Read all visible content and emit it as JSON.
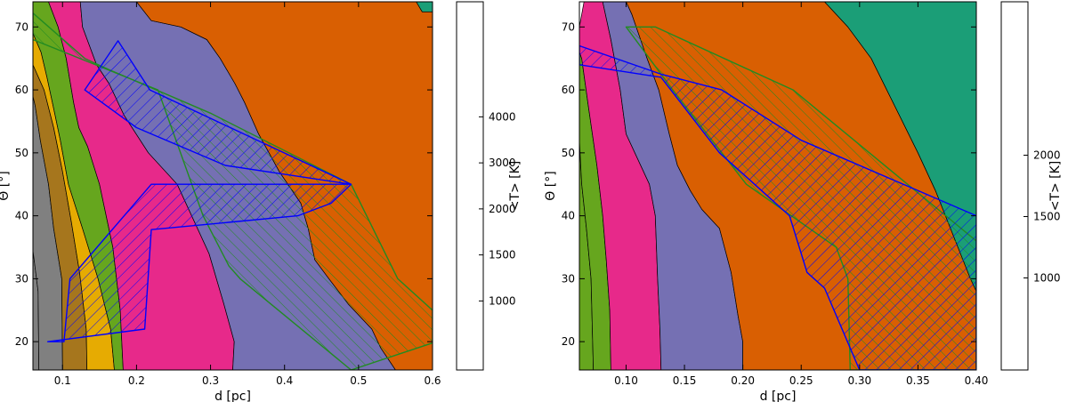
{
  "chart_data": [
    {
      "type": "contour",
      "xlabel": "d [pc]",
      "ylabel": "Θ [°]",
      "xlim": [
        0.06,
        0.6
      ],
      "ylim": [
        15.5,
        74
      ],
      "xticks": [
        0.1,
        0.2,
        0.3,
        0.4,
        0.5,
        0.6
      ],
      "xtick_labels": [
        "0.1",
        "0.2",
        "0.3",
        "0.4",
        "0.5",
        "0.6"
      ],
      "yticks": [
        20,
        30,
        40,
        50,
        60,
        70
      ],
      "ytick_labels": [
        "20",
        "30",
        "40",
        "50",
        "60",
        "70"
      ],
      "colorbar": {
        "label": "<T> [K]",
        "tick_values": [
          1000,
          1500,
          2000,
          3000,
          4000
        ],
        "tick_labels": [
          "1000",
          "1500",
          "2000",
          "3000",
          "4000"
        ],
        "band_colors": [
          "#1b9e77",
          "#d95f02",
          "#7570b3",
          "#e7298a",
          "#66a61e",
          "#e6ab02",
          "#a6761d",
          "#808080"
        ]
      },
      "regions": [
        {
          "color": "#808080",
          "x": [
            0.06,
            0.06,
            0.067,
            0.068,
            0.06
          ],
          "y": [
            74,
            34.5,
            28,
            15.5,
            15.5
          ]
        },
        {
          "color": "#808080",
          "x": [
            0.068,
            0.067,
            0.06,
            0.06,
            0.063,
            0.07,
            0.081,
            0.088,
            0.099,
            0.1
          ],
          "y": [
            15.5,
            28,
            34.5,
            59,
            57.5,
            52,
            45,
            38,
            30,
            15.5
          ]
        },
        {
          "color": "#a6761d",
          "x": [
            0.1,
            0.099,
            0.088,
            0.081,
            0.07,
            0.063,
            0.06,
            0.06,
            0.075,
            0.088,
            0.1,
            0.112,
            0.123,
            0.132,
            0.133
          ],
          "y": [
            15.5,
            30,
            38,
            45,
            52,
            57.5,
            59,
            64,
            60,
            54,
            47,
            39,
            31,
            22,
            15.5
          ]
        },
        {
          "color": "#e6ab02",
          "x": [
            0.133,
            0.132,
            0.123,
            0.112,
            0.1,
            0.088,
            0.075,
            0.06,
            0.06,
            0.071,
            0.079,
            0.09,
            0.097,
            0.108,
            0.127,
            0.148,
            0.165,
            0.17
          ],
          "y": [
            15.5,
            22,
            31,
            39,
            47,
            54,
            60,
            64,
            69,
            66,
            62,
            56,
            52,
            45,
            38,
            30,
            22,
            15.5
          ]
        },
        {
          "color": "#66a61e",
          "x": [
            0.17,
            0.165,
            0.148,
            0.127,
            0.108,
            0.097,
            0.09,
            0.079,
            0.071,
            0.06,
            0.06,
            0.081,
            0.094,
            0.105,
            0.115,
            0.122,
            0.134,
            0.15,
            0.168,
            0.178,
            0.182
          ],
          "y": [
            15.5,
            22,
            30,
            38,
            45,
            52,
            56,
            62,
            66,
            69,
            74,
            74,
            70,
            65,
            58,
            54,
            51,
            45,
            35,
            25,
            15.5
          ]
        },
        {
          "color": "#e7298a",
          "x": [
            0.182,
            0.178,
            0.168,
            0.15,
            0.134,
            0.122,
            0.115,
            0.105,
            0.094,
            0.081,
            0.124,
            0.127,
            0.146,
            0.163,
            0.183,
            0.216,
            0.255,
            0.298,
            0.318,
            0.332,
            0.33
          ],
          "y": [
            15.5,
            25,
            35,
            45,
            51,
            54,
            58,
            65,
            70,
            74,
            74,
            70,
            64,
            61,
            56,
            50,
            45,
            34,
            26,
            20,
            15.5
          ]
        },
        {
          "color": "#7570b3",
          "x": [
            0.33,
            0.332,
            0.318,
            0.298,
            0.255,
            0.216,
            0.183,
            0.163,
            0.146,
            0.127,
            0.124,
            0.2,
            0.22,
            0.26,
            0.295,
            0.313,
            0.333,
            0.346,
            0.365,
            0.393,
            0.422,
            0.432,
            0.441,
            0.46,
            0.486,
            0.518,
            0.53,
            0.55
          ],
          "y": [
            15.5,
            20,
            26,
            34,
            45,
            50,
            56,
            61,
            64,
            70,
            74,
            74,
            71,
            70,
            68,
            65,
            61,
            58,
            53,
            47,
            42,
            38,
            33,
            30,
            26,
            22,
            19,
            15.5
          ]
        },
        {
          "color": "#d95f02",
          "x": [
            0.55,
            0.53,
            0.518,
            0.486,
            0.46,
            0.441,
            0.432,
            0.422,
            0.393,
            0.365,
            0.346,
            0.333,
            0.313,
            0.295,
            0.26,
            0.22,
            0.2,
            0.578,
            0.586,
            0.6,
            0.6
          ],
          "y": [
            15.5,
            19,
            22,
            26,
            30,
            33,
            38,
            42,
            47,
            53,
            58,
            61,
            65,
            68,
            70,
            71,
            74,
            74,
            72.4,
            72.4,
            15.5
          ]
        },
        {
          "color": "#1b9e77",
          "x": [
            0.578,
            0.6,
            0.6,
            0.586
          ],
          "y": [
            74,
            74,
            72.4,
            72.4
          ]
        }
      ],
      "hatched_regions": [
        {
          "edge_color": "#228b22",
          "x": [
            0.06,
            0.13,
            0.163,
            0.3,
            0.49,
            0.553,
            0.6,
            0.6,
            0.49,
            0.34,
            0.325,
            0.29,
            0.229,
            0.06
          ],
          "y": [
            72.2,
            65,
            63.2,
            56.3,
            45,
            30,
            25,
            19.8,
            15.5,
            30,
            32,
            40,
            60,
            68
          ]
        },
        {
          "edge_color": "#0000ff",
          "x": [
            0.102,
            0.11,
            0.22,
            0.26,
            0.49,
            0.218,
            0.175,
            0.13,
            0.2,
            0.32,
            0.49,
            0.463,
            0.418,
            0.22,
            0.211,
            0.08
          ],
          "y": [
            20,
            30,
            45,
            45,
            45,
            60,
            67.8,
            60,
            54,
            48,
            45,
            42,
            40,
            37.8,
            22,
            20
          ]
        }
      ]
    },
    {
      "type": "contour",
      "xlabel": "d [pc]",
      "ylabel": "Θ [°]",
      "xlim": [
        0.06,
        0.4
      ],
      "ylim": [
        15.5,
        74
      ],
      "xticks": [
        0.1,
        0.15,
        0.2,
        0.25,
        0.3,
        0.35,
        0.4
      ],
      "xtick_labels": [
        "0.10",
        "0.15",
        "0.20",
        "0.25",
        "0.30",
        "0.35",
        "0.40"
      ],
      "yticks": [
        20,
        30,
        40,
        50,
        60,
        70
      ],
      "ytick_labels": [
        "20",
        "30",
        "40",
        "50",
        "60",
        "70"
      ],
      "colorbar": {
        "label": "<T> [K]",
        "tick_values": [
          1000,
          1500,
          2000
        ],
        "tick_labels": [
          "1000",
          "1500",
          "2000"
        ],
        "band_colors": [
          "#1b9e77",
          "#d95f02",
          "#7570b3",
          "#e7298a",
          "#66a61e",
          "#e6ab02"
        ]
      },
      "regions": [
        {
          "color": "#66a61e",
          "x": [
            0.06,
            0.06,
            0.062,
            0.066,
            0.07,
            0.072
          ],
          "y": [
            15.5,
            52,
            45,
            38,
            30,
            15.5
          ]
        },
        {
          "color": "#66a61e",
          "x": [
            0.072,
            0.07,
            0.066,
            0.062,
            0.06,
            0.06,
            0.062,
            0.068,
            0.075,
            0.08,
            0.083,
            0.086,
            0.087
          ],
          "y": [
            15.5,
            30,
            38,
            45,
            52,
            66,
            65,
            57,
            48,
            40,
            33,
            25,
            15.5
          ]
        },
        {
          "color": "#e7298a",
          "x": [
            0.087,
            0.086,
            0.083,
            0.08,
            0.075,
            0.068,
            0.062,
            0.06,
            0.06,
            0.064,
            0.08,
            0.087,
            0.095,
            0.1,
            0.12,
            0.125,
            0.127,
            0.129,
            0.13
          ],
          "y": [
            15.5,
            25,
            33,
            40,
            48,
            57,
            65,
            66,
            70,
            74,
            74,
            68,
            60,
            53,
            45,
            40,
            30,
            22,
            15.5
          ]
        },
        {
          "color": "#7570b3",
          "x": [
            0.13,
            0.129,
            0.127,
            0.125,
            0.12,
            0.1,
            0.095,
            0.087,
            0.08,
            0.064,
            0.1,
            0.105,
            0.118,
            0.128,
            0.137,
            0.144,
            0.155,
            0.165,
            0.18,
            0.19,
            0.196,
            0.2,
            0.2
          ],
          "y": [
            15.5,
            22,
            30,
            40,
            45,
            53,
            60,
            68,
            74,
            74,
            74,
            72,
            65,
            60,
            53,
            48,
            44,
            41,
            38,
            31,
            24,
            20,
            15.5
          ]
        },
        {
          "color": "#d95f02",
          "x": [
            0.2,
            0.2,
            0.196,
            0.19,
            0.18,
            0.165,
            0.155,
            0.144,
            0.137,
            0.128,
            0.118,
            0.105,
            0.1,
            0.27,
            0.29,
            0.31,
            0.35,
            0.365,
            0.395,
            0.4,
            0.4
          ],
          "y": [
            15.5,
            20,
            24,
            31,
            38,
            41,
            44,
            48,
            53,
            60,
            65,
            72,
            74,
            74,
            70,
            65,
            50,
            44,
            30,
            28,
            15.5
          ]
        },
        {
          "color": "#1b9e77",
          "x": [
            0.27,
            0.4,
            0.4,
            0.395,
            0.365,
            0.35,
            0.31,
            0.29
          ],
          "y": [
            74,
            74,
            28,
            30,
            44,
            50,
            65,
            70
          ]
        }
      ],
      "hatched_regions": [
        {
          "edge_color": "#228b22",
          "x": [
            0.1,
            0.125,
            0.243,
            0.4,
            0.4,
            0.292,
            0.29,
            0.28,
            0.203,
            0.14,
            0.1
          ],
          "y": [
            70,
            70,
            60,
            36,
            15.5,
            15.5,
            30,
            35,
            45,
            60,
            70
          ]
        },
        {
          "edge_color": "#0000ff",
          "x": [
            0.06,
            0.06,
            0.13,
            0.182,
            0.25,
            0.4,
            0.4,
            0.3,
            0.27,
            0.255,
            0.24,
            0.21,
            0.18,
            0.13,
            0.06
          ],
          "y": [
            64,
            67,
            62.5,
            60,
            52,
            40,
            15.5,
            15.5,
            28.5,
            31,
            40,
            45,
            50,
            62,
            64
          ]
        }
      ]
    }
  ]
}
